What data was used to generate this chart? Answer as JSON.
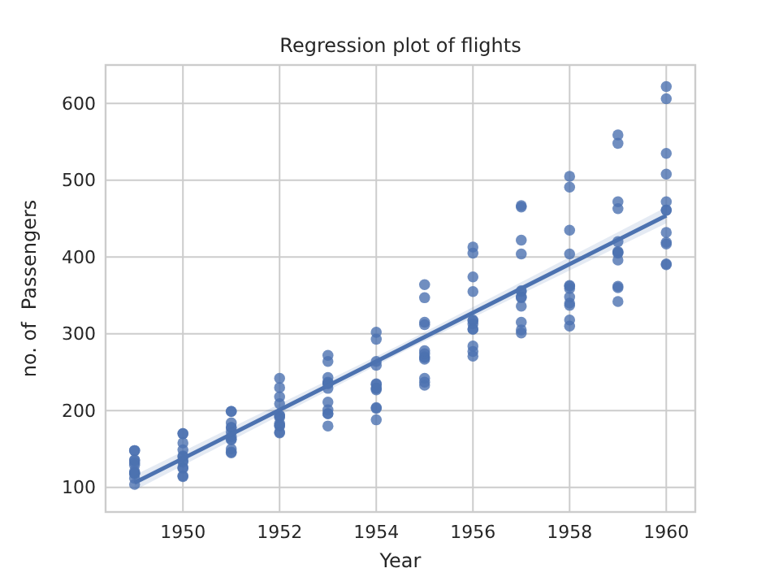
{
  "chart_data": {
    "type": "scatter",
    "title": "Regression plot of flights",
    "xlabel": "Year",
    "ylabel": "no. of  Passengers",
    "xlim": [
      1948.4,
      1960.6
    ],
    "ylim": [
      68,
      650
    ],
    "xticks": [
      1950,
      1952,
      1954,
      1956,
      1958,
      1960
    ],
    "yticks": [
      100,
      200,
      300,
      400,
      500,
      600
    ],
    "grid": true,
    "series": [
      {
        "marker": "circle",
        "color": "#4c72b0",
        "x": [
          1949,
          1949,
          1949,
          1949,
          1949,
          1949,
          1949,
          1949,
          1949,
          1949,
          1949,
          1949,
          1950,
          1950,
          1950,
          1950,
          1950,
          1950,
          1950,
          1950,
          1950,
          1950,
          1950,
          1950,
          1951,
          1951,
          1951,
          1951,
          1951,
          1951,
          1951,
          1951,
          1951,
          1951,
          1951,
          1951,
          1952,
          1952,
          1952,
          1952,
          1952,
          1952,
          1952,
          1952,
          1952,
          1952,
          1952,
          1952,
          1953,
          1953,
          1953,
          1953,
          1953,
          1953,
          1953,
          1953,
          1953,
          1953,
          1953,
          1953,
          1954,
          1954,
          1954,
          1954,
          1954,
          1954,
          1954,
          1954,
          1954,
          1954,
          1954,
          1954,
          1955,
          1955,
          1955,
          1955,
          1955,
          1955,
          1955,
          1955,
          1955,
          1955,
          1955,
          1955,
          1956,
          1956,
          1956,
          1956,
          1956,
          1956,
          1956,
          1956,
          1956,
          1956,
          1956,
          1956,
          1957,
          1957,
          1957,
          1957,
          1957,
          1957,
          1957,
          1957,
          1957,
          1957,
          1957,
          1957,
          1958,
          1958,
          1958,
          1958,
          1958,
          1958,
          1958,
          1958,
          1958,
          1958,
          1958,
          1958,
          1959,
          1959,
          1959,
          1959,
          1959,
          1959,
          1959,
          1959,
          1959,
          1959,
          1959,
          1959,
          1960,
          1960,
          1960,
          1960,
          1960,
          1960,
          1960,
          1960,
          1960,
          1960,
          1960,
          1960
        ],
        "values": [
          112,
          118,
          132,
          129,
          121,
          135,
          148,
          148,
          136,
          119,
          104,
          118,
          115,
          126,
          141,
          135,
          125,
          149,
          170,
          170,
          158,
          133,
          114,
          140,
          145,
          150,
          178,
          163,
          172,
          178,
          199,
          199,
          184,
          162,
          146,
          166,
          171,
          180,
          193,
          181,
          183,
          218,
          230,
          242,
          209,
          191,
          172,
          194,
          196,
          196,
          236,
          235,
          229,
          243,
          264,
          272,
          237,
          211,
          180,
          201,
          204,
          188,
          235,
          227,
          234,
          264,
          302,
          293,
          259,
          229,
          203,
          229,
          242,
          233,
          267,
          269,
          270,
          315,
          364,
          347,
          312,
          274,
          237,
          278,
          284,
          277,
          317,
          313,
          318,
          374,
          413,
          405,
          355,
          306,
          271,
          306,
          315,
          301,
          356,
          348,
          355,
          422,
          465,
          467,
          404,
          347,
          305,
          336,
          340,
          318,
          362,
          348,
          363,
          435,
          491,
          505,
          404,
          359,
          310,
          337,
          360,
          342,
          406,
          396,
          420,
          472,
          548,
          559,
          463,
          407,
          362,
          405,
          417,
          391,
          419,
          461,
          472,
          535,
          622,
          606,
          508,
          461,
          390,
          432
        ]
      },
      {
        "type": "line",
        "color": "#4c72b0",
        "x": [
          1949,
          1954.5,
          1960
        ],
        "values": [
          106,
          280,
          454
        ],
        "lower": [
          96,
          275,
          444
        ],
        "upper": [
          116,
          286,
          465
        ]
      }
    ]
  }
}
